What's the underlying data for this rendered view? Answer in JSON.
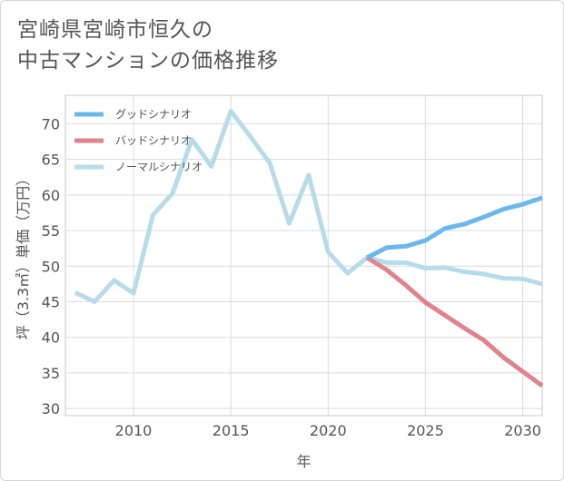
{
  "title_lines": [
    "宮崎県宮崎市恒久の",
    "中古マンションの価格推移"
  ],
  "chart_data": {
    "type": "line",
    "xlabel": "年",
    "ylabel": "坪（3.3㎡）単価（万円）",
    "xlim": [
      2006.5,
      2031
    ],
    "ylim": [
      29,
      74
    ],
    "x_ticks": [
      2010,
      2015,
      2020,
      2025,
      2030
    ],
    "y_ticks": [
      30,
      35,
      40,
      45,
      50,
      55,
      60,
      65,
      70
    ],
    "grid": true,
    "legend_position": "top-left",
    "series": [
      {
        "name": "グッドシナリオ",
        "color": "#6bb8ee",
        "x": [
          2022,
          2023,
          2024,
          2025,
          2026,
          2027,
          2028,
          2029,
          2030,
          2031
        ],
        "y": [
          51.2,
          52.6,
          52.8,
          53.6,
          55.3,
          55.9,
          56.9,
          58.0,
          58.7,
          59.6
        ]
      },
      {
        "name": "バッドシナリオ",
        "color": "#e0848b",
        "x": [
          2022,
          2023,
          2024,
          2025,
          2026,
          2027,
          2028,
          2029,
          2030,
          2031
        ],
        "y": [
          51.2,
          49.5,
          47.3,
          44.9,
          43.1,
          41.3,
          39.6,
          37.2,
          35.2,
          33.2
        ]
      },
      {
        "name": "ノーマルシナリオ",
        "color": "#b6dcec",
        "x": [
          2007,
          2008,
          2009,
          2010,
          2011,
          2012,
          2013,
          2014,
          2015,
          2016,
          2017,
          2018,
          2019,
          2020,
          2021,
          2022,
          2023,
          2024,
          2025,
          2026,
          2027,
          2028,
          2029,
          2030,
          2031
        ],
        "y": [
          46.3,
          45.0,
          48.0,
          46.2,
          57.2,
          60.2,
          67.8,
          64.0,
          71.8,
          68.2,
          64.5,
          56.0,
          62.8,
          52.0,
          49.0,
          51.2,
          50.5,
          50.5,
          49.7,
          49.8,
          49.2,
          48.9,
          48.3,
          48.2,
          47.5
        ]
      }
    ]
  }
}
